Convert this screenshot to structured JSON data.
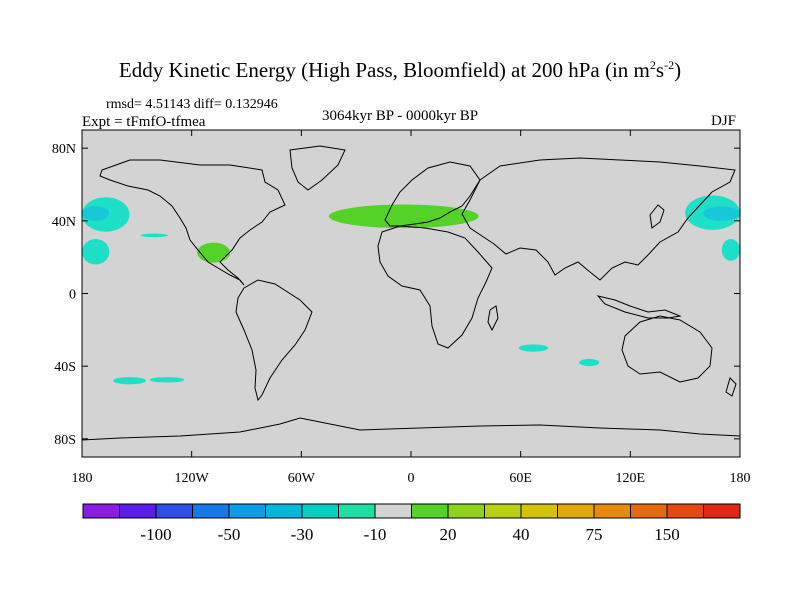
{
  "chart_data": {
    "type": "heatmap",
    "title": "Eddy Kinetic Energy (High Pass, Bloomfield) at 200 hPa (in m",
    "title_units_sup1": "2",
    "title_units_mid": "s",
    "title_units_sup2": "-2",
    "title_units_close": ")",
    "stats_line": "rmsd= 4.51143 diff= 0.132946",
    "experiment": "Expt = tFmfO-tfmea",
    "period": "3064kyr BP - 0000kyr BP",
    "season": "DJF",
    "x_axis": {
      "range": [
        -180,
        180
      ],
      "ticks": [
        -180,
        -120,
        -60,
        0,
        60,
        120,
        180
      ],
      "tick_labels": [
        "180",
        "120W",
        "60W",
        "0",
        "60E",
        "120E",
        "180"
      ]
    },
    "y_axis": {
      "range": [
        -90,
        90
      ],
      "ticks": [
        80,
        40,
        0,
        -40,
        -80
      ],
      "tick_labels": [
        "80N",
        "40N",
        "0",
        "40S",
        "80S"
      ]
    },
    "background_fill": "#d3d3d3",
    "colorbar": {
      "colors": [
        "#8a1ee0",
        "#5a1ee8",
        "#2e4fe6",
        "#1878e8",
        "#0d9ee6",
        "#00b8d8",
        "#05cfc2",
        "#1ee0a4",
        "#d3d3d3",
        "#55d228",
        "#90d218",
        "#b8d00e",
        "#d2c208",
        "#e0a808",
        "#e38c0b",
        "#e46a0d",
        "#e34a12",
        "#e02818"
      ],
      "labels": [
        "-100",
        "-50",
        "-30",
        "-10",
        "20",
        "40",
        "75",
        "150"
      ],
      "label_after_boundary": [
        2,
        4,
        6,
        8,
        10,
        12,
        14,
        16
      ]
    },
    "anomaly_regions": [
      {
        "name": "north-pacific-west",
        "sign": "negative",
        "color": "#1ee0c8",
        "lon": [
          -180,
          -154
        ],
        "lat": [
          34,
          53
        ]
      },
      {
        "name": "north-pacific-west-core",
        "sign": "negative",
        "color": "#18c8d8",
        "lon": [
          -180,
          -165
        ],
        "lat": [
          40,
          48
        ]
      },
      {
        "name": "north-pacific-east",
        "sign": "negative",
        "color": "#1ee0c8",
        "lon": [
          150,
          180
        ],
        "lat": [
          35,
          54
        ]
      },
      {
        "name": "north-pacific-east-core",
        "sign": "negative",
        "color": "#18c8d8",
        "lon": [
          160,
          180
        ],
        "lat": [
          40,
          48
        ]
      },
      {
        "name": "subtropical-pacific-west",
        "sign": "negative",
        "color": "#1ee0c8",
        "lon": [
          -180,
          -165
        ],
        "lat": [
          16,
          30
        ]
      },
      {
        "name": "subtropical-pacific-east",
        "sign": "negative",
        "color": "#1ee0c8",
        "lon": [
          170,
          180
        ],
        "lat": [
          18,
          30
        ]
      },
      {
        "name": "subtropical-pacific-streak",
        "sign": "negative",
        "color": "#1ee0c8",
        "lon": [
          -148,
          -133
        ],
        "lat": [
          31,
          33
        ]
      },
      {
        "name": "southern-ocean-a",
        "sign": "negative",
        "color": "#1ee0c8",
        "lon": [
          -163,
          -145
        ],
        "lat": [
          -50,
          -46
        ]
      },
      {
        "name": "southern-ocean-b",
        "sign": "negative",
        "color": "#1ee0c8",
        "lon": [
          -143,
          -124
        ],
        "lat": [
          -49,
          -46
        ]
      },
      {
        "name": "south-indian-a",
        "sign": "negative",
        "color": "#1ee0c8",
        "lon": [
          59,
          75
        ],
        "lat": [
          -32,
          -28
        ]
      },
      {
        "name": "south-indian-b",
        "sign": "negative",
        "color": "#1ee0c8",
        "lon": [
          92,
          103
        ],
        "lat": [
          -40,
          -36
        ]
      },
      {
        "name": "north-atlantic-europe",
        "sign": "positive",
        "color": "#55d228",
        "lon": [
          -45,
          37
        ],
        "lat": [
          36,
          49
        ]
      },
      {
        "name": "central-america",
        "sign": "positive",
        "color": "#55d228",
        "lon": [
          -117,
          -99
        ],
        "lat": [
          17,
          28
        ]
      }
    ]
  }
}
